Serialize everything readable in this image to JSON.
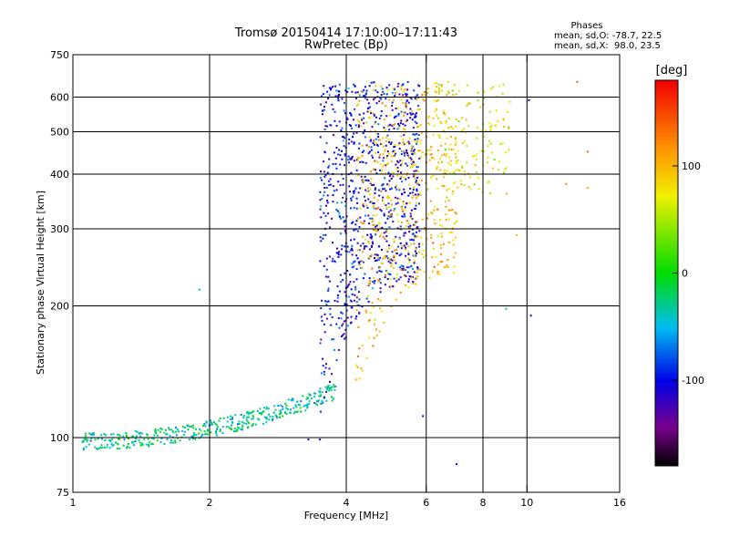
{
  "chart_data": {
    "type": "scatter",
    "title": "Tromsø 20150414 17:10:00–17:11:43",
    "subtitle": "RwPretec (Bp)",
    "xlabel": "Frequency [MHz]",
    "ylabel": "Stationary phase Virtual Height [km]",
    "x_scale": "log",
    "y_scale": "log",
    "xlim": [
      1,
      16
    ],
    "ylim": [
      75,
      750
    ],
    "xticks": [
      1,
      2,
      4,
      6,
      8,
      10,
      16
    ],
    "yticks": [
      75,
      100,
      200,
      300,
      400,
      500,
      600,
      750
    ],
    "x_gridlines": [
      2,
      4,
      6,
      8,
      10
    ],
    "y_gridlines": [
      100,
      200,
      300,
      400,
      500,
      600
    ],
    "grid": true,
    "stats": {
      "title": "Phases",
      "line1": "mean, sd,O: -78.7, 22.5",
      "line2": "mean, sd,X:  98.0, 23.5"
    },
    "colorbar": {
      "label": "[deg]",
      "range": [
        -180,
        180
      ],
      "ticks": [
        "100",
        "0",
        "-100"
      ],
      "tick_values": [
        100,
        0,
        -100
      ],
      "colormap": "rainbow"
    },
    "clusters": [
      {
        "desc": "low-height trace",
        "x_range": [
          1.05,
          3.8
        ],
        "h_range": [
          98,
          128
        ],
        "phase_mean": -30,
        "count": 420
      },
      {
        "desc": "O-mode F-region",
        "x_range": [
          3.5,
          5.8
        ],
        "h_range": [
          110,
          650
        ],
        "phase_mean": -100,
        "count": 900
      },
      {
        "desc": "X-mode F-region",
        "x_range": [
          4.2,
          7.0
        ],
        "h_range": [
          120,
          640
        ],
        "phase_mean": 95,
        "count": 520
      },
      {
        "desc": "upper echoes",
        "x_range": [
          6.0,
          9.2
        ],
        "h_range": [
          360,
          650
        ],
        "phase_mean": 70,
        "count": 160
      },
      {
        "desc": "isolated echoes",
        "points": [
          [
            1.9,
            218,
            -40
          ],
          [
            3.3,
            99,
            -110
          ],
          [
            3.5,
            99,
            -110
          ],
          [
            5.9,
            112,
            -110
          ],
          [
            7.0,
            87,
            -110
          ],
          [
            9.0,
            197,
            -30
          ],
          [
            10.2,
            190,
            -110
          ],
          [
            10.1,
            590,
            -110
          ],
          [
            12.2,
            380,
            120
          ],
          [
            12.9,
            650,
            140
          ],
          [
            13.6,
            450,
            140
          ],
          [
            13.6,
            372,
            110
          ],
          [
            9.5,
            290,
            100
          ]
        ]
      }
    ]
  }
}
